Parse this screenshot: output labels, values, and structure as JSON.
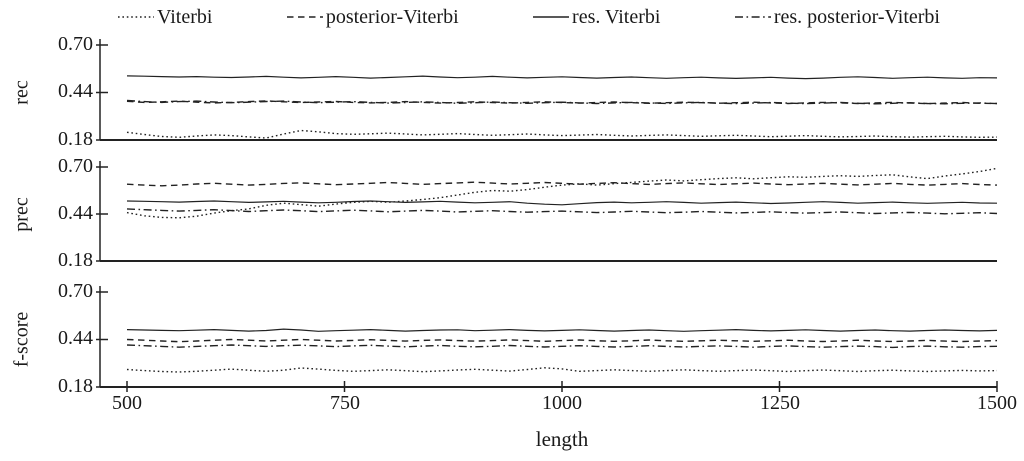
{
  "figure": {
    "background": "#ffffff",
    "line_color": "#222222",
    "text_color": "#1a1a1a"
  },
  "legend": {
    "items": [
      {
        "label": "Viterbi",
        "style": "dotted"
      },
      {
        "label": "posterior-Viterbi",
        "style": "dashed"
      },
      {
        "label": "res. Viterbi",
        "style": "solid"
      },
      {
        "label": "res. posterior-Viterbi",
        "style": "dashdot"
      }
    ]
  },
  "axes": {
    "x_label": "length",
    "x_ticks": [
      "500",
      "750",
      "1000",
      "1250",
      "1500"
    ],
    "y_ticks": [
      "0.70",
      "0.44",
      "0.18"
    ]
  },
  "chart_data": {
    "type": "line",
    "xlabel": "length",
    "x_range": [
      500,
      1500
    ],
    "ylim": [
      0.18,
      0.7
    ],
    "y_tick_values": [
      0.7,
      0.44,
      0.18
    ],
    "x_tick_values": [
      500,
      750,
      1000,
      1250,
      1500
    ],
    "grid": false,
    "legend_position": "top",
    "x": [
      500,
      520,
      540,
      560,
      580,
      600,
      620,
      640,
      660,
      680,
      700,
      720,
      740,
      760,
      780,
      800,
      820,
      840,
      860,
      880,
      900,
      920,
      940,
      960,
      980,
      1000,
      1020,
      1040,
      1060,
      1080,
      1100,
      1120,
      1140,
      1160,
      1180,
      1200,
      1220,
      1240,
      1260,
      1280,
      1300,
      1320,
      1340,
      1360,
      1380,
      1400,
      1420,
      1440,
      1460,
      1480,
      1500
    ],
    "subplots": [
      {
        "ylabel": "rec",
        "series": [
          {
            "name": "Viterbi",
            "style": "dotted",
            "values": [
              0.222,
              0.21,
              0.199,
              0.195,
              0.202,
              0.208,
              0.204,
              0.197,
              0.191,
              0.213,
              0.232,
              0.225,
              0.215,
              0.211,
              0.214,
              0.218,
              0.213,
              0.208,
              0.211,
              0.215,
              0.21,
              0.206,
              0.209,
              0.213,
              0.208,
              0.204,
              0.207,
              0.21,
              0.206,
              0.202,
              0.205,
              0.208,
              0.204,
              0.2,
              0.203,
              0.206,
              0.202,
              0.198,
              0.201,
              0.204,
              0.2,
              0.197,
              0.199,
              0.202,
              0.198,
              0.196,
              0.198,
              0.2,
              0.197,
              0.195,
              0.196
            ]
          },
          {
            "name": "posterior-Viterbi",
            "style": "dashed",
            "values": [
              0.392,
              0.386,
              0.389,
              0.393,
              0.387,
              0.383,
              0.386,
              0.39,
              0.394,
              0.389,
              0.385,
              0.388,
              0.391,
              0.386,
              0.383,
              0.386,
              0.39,
              0.386,
              0.382,
              0.385,
              0.389,
              0.385,
              0.382,
              0.386,
              0.389,
              0.385,
              0.382,
              0.385,
              0.388,
              0.384,
              0.381,
              0.384,
              0.387,
              0.384,
              0.381,
              0.384,
              0.387,
              0.383,
              0.38,
              0.383,
              0.386,
              0.383,
              0.38,
              0.383,
              0.386,
              0.382,
              0.379,
              0.382,
              0.385,
              0.381,
              0.38
            ]
          },
          {
            "name": "res. Viterbi",
            "style": "solid",
            "values": [
              0.531,
              0.529,
              0.527,
              0.525,
              0.527,
              0.524,
              0.522,
              0.525,
              0.528,
              0.524,
              0.52,
              0.523,
              0.527,
              0.523,
              0.519,
              0.522,
              0.526,
              0.53,
              0.525,
              0.521,
              0.524,
              0.528,
              0.524,
              0.52,
              0.523,
              0.526,
              0.522,
              0.519,
              0.522,
              0.525,
              0.521,
              0.518,
              0.521,
              0.524,
              0.52,
              0.517,
              0.52,
              0.523,
              0.519,
              0.516,
              0.519,
              0.523,
              0.526,
              0.522,
              0.518,
              0.521,
              0.524,
              0.52,
              0.518,
              0.521,
              0.52
            ]
          },
          {
            "name": "res. posterior-Viterbi",
            "style": "dashdot",
            "values": [
              0.396,
              0.39,
              0.386,
              0.39,
              0.393,
              0.388,
              0.384,
              0.387,
              0.391,
              0.393,
              0.388,
              0.384,
              0.387,
              0.39,
              0.386,
              0.382,
              0.385,
              0.389,
              0.385,
              0.381,
              0.384,
              0.388,
              0.384,
              0.381,
              0.384,
              0.387,
              0.383,
              0.38,
              0.383,
              0.386,
              0.383,
              0.38,
              0.383,
              0.386,
              0.382,
              0.379,
              0.382,
              0.385,
              0.382,
              0.379,
              0.382,
              0.385,
              0.381,
              0.378,
              0.381,
              0.384,
              0.38,
              0.378,
              0.381,
              0.383,
              0.379
            ]
          }
        ]
      },
      {
        "ylabel": "prec",
        "series": [
          {
            "name": "Viterbi",
            "style": "dotted",
            "values": [
              0.448,
              0.43,
              0.421,
              0.419,
              0.428,
              0.445,
              0.458,
              0.468,
              0.488,
              0.5,
              0.492,
              0.483,
              0.495,
              0.505,
              0.51,
              0.505,
              0.512,
              0.52,
              0.53,
              0.545,
              0.56,
              0.57,
              0.566,
              0.575,
              0.588,
              0.6,
              0.607,
              0.6,
              0.608,
              0.615,
              0.622,
              0.628,
              0.623,
              0.63,
              0.636,
              0.64,
              0.635,
              0.641,
              0.646,
              0.643,
              0.648,
              0.652,
              0.648,
              0.653,
              0.657,
              0.645,
              0.636,
              0.65,
              0.662,
              0.675,
              0.692
            ]
          },
          {
            "name": "posterior-Viterbi",
            "style": "dashed",
            "values": [
              0.605,
              0.6,
              0.596,
              0.6,
              0.606,
              0.61,
              0.605,
              0.6,
              0.604,
              0.609,
              0.612,
              0.607,
              0.602,
              0.606,
              0.61,
              0.614,
              0.609,
              0.604,
              0.608,
              0.612,
              0.616,
              0.611,
              0.606,
              0.61,
              0.614,
              0.61,
              0.605,
              0.609,
              0.613,
              0.608,
              0.604,
              0.608,
              0.612,
              0.607,
              0.603,
              0.607,
              0.611,
              0.606,
              0.602,
              0.606,
              0.61,
              0.605,
              0.601,
              0.605,
              0.609,
              0.604,
              0.6,
              0.604,
              0.608,
              0.603,
              0.6
            ]
          },
          {
            "name": "res. Viterbi",
            "style": "solid",
            "values": [
              0.512,
              0.51,
              0.508,
              0.506,
              0.509,
              0.512,
              0.508,
              0.504,
              0.507,
              0.51,
              0.506,
              0.502,
              0.505,
              0.509,
              0.512,
              0.508,
              0.504,
              0.507,
              0.51,
              0.506,
              0.502,
              0.505,
              0.508,
              0.5,
              0.494,
              0.491,
              0.497,
              0.503,
              0.506,
              0.502,
              0.505,
              0.508,
              0.504,
              0.5,
              0.503,
              0.506,
              0.502,
              0.498,
              0.501,
              0.505,
              0.508,
              0.504,
              0.5,
              0.503,
              0.506,
              0.502,
              0.499,
              0.502,
              0.505,
              0.501,
              0.5
            ]
          },
          {
            "name": "res. posterior-Viterbi",
            "style": "dashdot",
            "values": [
              0.468,
              0.464,
              0.46,
              0.456,
              0.46,
              0.464,
              0.459,
              0.454,
              0.458,
              0.462,
              0.458,
              0.453,
              0.457,
              0.461,
              0.457,
              0.452,
              0.456,
              0.46,
              0.456,
              0.451,
              0.455,
              0.458,
              0.454,
              0.45,
              0.453,
              0.456,
              0.452,
              0.448,
              0.451,
              0.455,
              0.451,
              0.447,
              0.45,
              0.454,
              0.45,
              0.446,
              0.449,
              0.452,
              0.448,
              0.445,
              0.448,
              0.451,
              0.447,
              0.443,
              0.446,
              0.449,
              0.445,
              0.441,
              0.444,
              0.447,
              0.443
            ]
          }
        ]
      },
      {
        "ylabel": "f-score",
        "series": [
          {
            "name": "Viterbi",
            "style": "dotted",
            "values": [
              0.276,
              0.27,
              0.265,
              0.262,
              0.266,
              0.272,
              0.278,
              0.272,
              0.266,
              0.272,
              0.284,
              0.278,
              0.271,
              0.266,
              0.27,
              0.274,
              0.269,
              0.264,
              0.268,
              0.273,
              0.277,
              0.272,
              0.267,
              0.276,
              0.285,
              0.279,
              0.266,
              0.27,
              0.274,
              0.27,
              0.266,
              0.27,
              0.274,
              0.27,
              0.266,
              0.27,
              0.273,
              0.269,
              0.265,
              0.269,
              0.273,
              0.269,
              0.265,
              0.269,
              0.272,
              0.268,
              0.265,
              0.268,
              0.271,
              0.268,
              0.27
            ]
          },
          {
            "name": "posterior-Viterbi",
            "style": "dashed",
            "values": [
              0.44,
              0.436,
              0.432,
              0.428,
              0.432,
              0.436,
              0.44,
              0.436,
              0.432,
              0.436,
              0.44,
              0.436,
              0.432,
              0.435,
              0.439,
              0.435,
              0.431,
              0.435,
              0.438,
              0.434,
              0.431,
              0.434,
              0.438,
              0.434,
              0.43,
              0.434,
              0.437,
              0.433,
              0.43,
              0.433,
              0.437,
              0.433,
              0.43,
              0.433,
              0.436,
              0.433,
              0.43,
              0.433,
              0.436,
              0.432,
              0.429,
              0.432,
              0.436,
              0.432,
              0.429,
              0.432,
              0.435,
              0.431,
              0.429,
              0.432,
              0.434
            ]
          },
          {
            "name": "res. Viterbi",
            "style": "solid",
            "values": [
              0.494,
              0.492,
              0.49,
              0.488,
              0.491,
              0.494,
              0.49,
              0.486,
              0.489,
              0.497,
              0.492,
              0.485,
              0.488,
              0.491,
              0.494,
              0.49,
              0.486,
              0.489,
              0.492,
              0.493,
              0.488,
              0.491,
              0.494,
              0.49,
              0.487,
              0.49,
              0.493,
              0.489,
              0.486,
              0.489,
              0.492,
              0.488,
              0.485,
              0.488,
              0.491,
              0.494,
              0.49,
              0.487,
              0.49,
              0.493,
              0.489,
              0.486,
              0.489,
              0.492,
              0.488,
              0.486,
              0.489,
              0.492,
              0.489,
              0.487,
              0.49
            ]
          },
          {
            "name": "res. posterior-Viterbi",
            "style": "dashdot",
            "values": [
              0.41,
              0.406,
              0.402,
              0.398,
              0.402,
              0.406,
              0.41,
              0.406,
              0.402,
              0.406,
              0.409,
              0.405,
              0.401,
              0.405,
              0.408,
              0.404,
              0.4,
              0.404,
              0.407,
              0.403,
              0.4,
              0.403,
              0.407,
              0.403,
              0.399,
              0.403,
              0.406,
              0.402,
              0.399,
              0.402,
              0.406,
              0.402,
              0.399,
              0.402,
              0.405,
              0.402,
              0.398,
              0.402,
              0.405,
              0.401,
              0.398,
              0.401,
              0.404,
              0.401,
              0.397,
              0.401,
              0.404,
              0.4,
              0.398,
              0.401,
              0.403
            ]
          }
        ]
      }
    ]
  }
}
